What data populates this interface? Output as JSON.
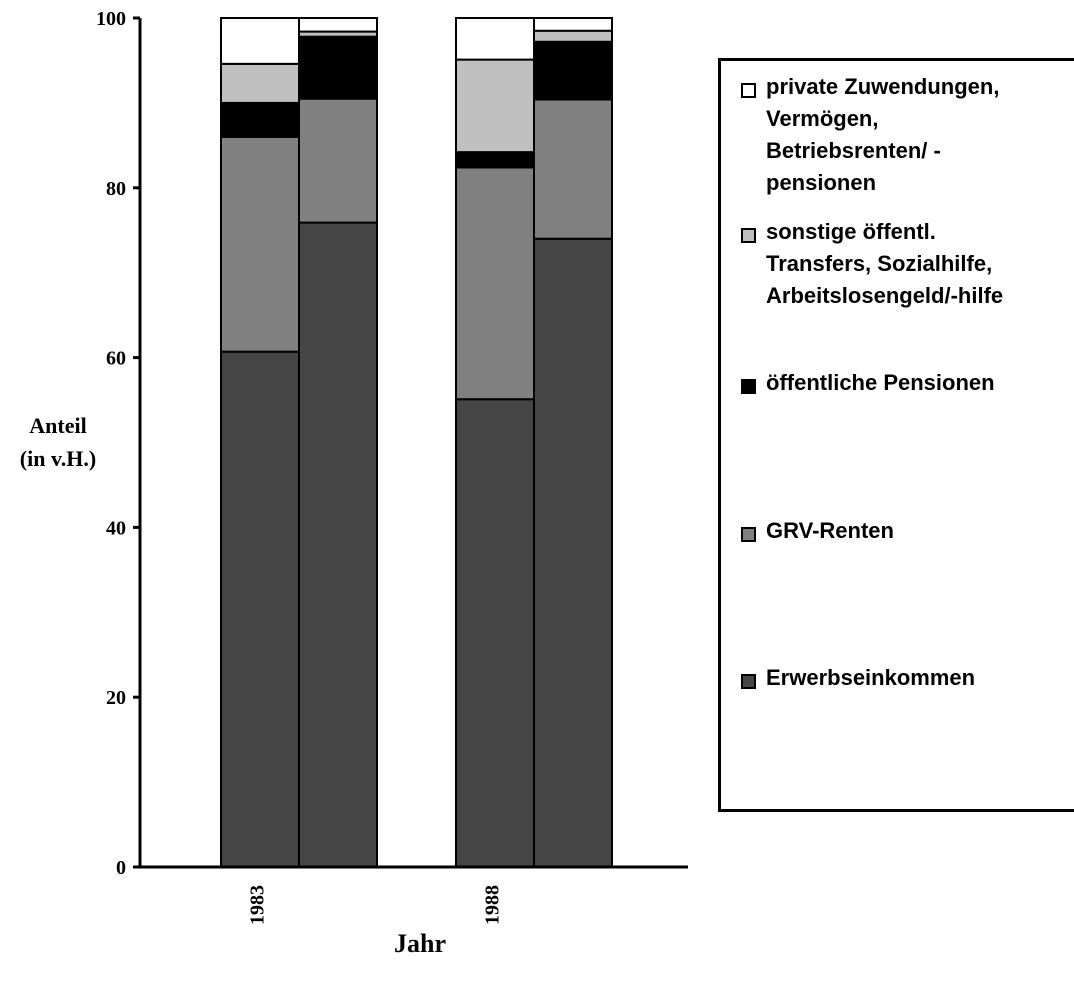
{
  "chart_data": {
    "type": "stacked-bar",
    "ylabel_line1": "Anteil",
    "ylabel_line2": "(in v.H.)",
    "xlabel": "Jahr",
    "ylim": [
      0,
      100
    ],
    "yticks": [
      "0",
      "20",
      "40",
      "60",
      "80",
      "100"
    ],
    "categories": [
      "1983",
      "1988"
    ],
    "bars_per_category": 2,
    "series": [
      {
        "name": "Erwerbseinkommen",
        "color": "#454545",
        "values": [
          [
            60.7,
            75.9
          ],
          [
            55.1,
            74.0
          ]
        ]
      },
      {
        "name": "GRV-Renten",
        "color": "#808080",
        "values": [
          [
            25.3,
            14.6
          ],
          [
            27.3,
            16.4
          ]
        ]
      },
      {
        "name": "öffentliche Pensionen",
        "color": "#000000",
        "values": [
          [
            4.0,
            7.3
          ],
          [
            1.8,
            6.8
          ]
        ]
      },
      {
        "name": "sonstige öffentl.\nTransfers, Sozialhilfe,\nArbeitslosengeld/-hilfe",
        "color": "#c0c0c0",
        "values": [
          [
            4.6,
            0.6
          ],
          [
            10.9,
            1.3
          ]
        ]
      },
      {
        "name": "private Zuwendungen,\nVermögen,\nBetriebsrenten/ -\npensionen",
        "color": "#ffffff",
        "values": [
          [
            5.4,
            1.6
          ],
          [
            4.9,
            1.5
          ]
        ]
      }
    ],
    "legend_position": "right"
  }
}
